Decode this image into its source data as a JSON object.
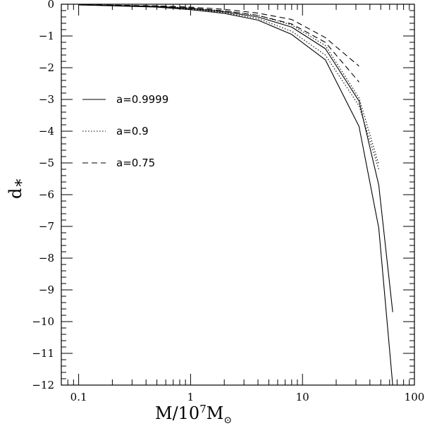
{
  "chart_data": {
    "type": "line",
    "xscale": "log",
    "xlim": [
      0.07,
      100
    ],
    "ylim": [
      -12,
      0
    ],
    "xlabel": {
      "base": "M/10",
      "sup": "7",
      "unit": "M",
      "sub": "⊙"
    },
    "ylabel": {
      "base": "d",
      "sub": "*"
    },
    "xticks_major": [
      {
        "value": 0.1,
        "label": "0.1"
      },
      {
        "value": 1,
        "label": "1"
      },
      {
        "value": 10,
        "label": "10"
      },
      {
        "value": 100,
        "label": "100"
      }
    ],
    "yticks_major": [
      {
        "value": 0,
        "label": "0"
      },
      {
        "value": -1,
        "label": "−1"
      },
      {
        "value": -2,
        "label": "−2"
      },
      {
        "value": -3,
        "label": "−3"
      },
      {
        "value": -4,
        "label": "−4"
      },
      {
        "value": -5,
        "label": "−5"
      },
      {
        "value": -6,
        "label": "−6"
      },
      {
        "value": -7,
        "label": "−7"
      },
      {
        "value": -8,
        "label": "−8"
      },
      {
        "value": -9,
        "label": "−9"
      },
      {
        "value": -10,
        "label": "−10"
      },
      {
        "value": -11,
        "label": "−11"
      },
      {
        "value": -12,
        "label": "−12"
      }
    ],
    "legend": {
      "placement": "left-middle"
    },
    "series": [
      {
        "name": "a=0.9999",
        "style": "solid",
        "x": [
          0.1,
          0.5,
          1,
          2,
          4,
          8,
          16,
          32,
          48,
          64
        ],
        "y": [
          -0.02,
          -0.09,
          -0.17,
          -0.29,
          -0.5,
          -0.95,
          -1.75,
          -3.85,
          -7.05,
          -12.0
        ]
      },
      {
        "name": "a=0.9999",
        "style": "solid",
        "x": [
          0.1,
          0.5,
          1,
          2,
          4,
          8,
          16,
          32,
          48,
          64
        ],
        "y": [
          -0.02,
          -0.07,
          -0.13,
          -0.24,
          -0.4,
          -0.72,
          -1.4,
          -3.05,
          -5.7,
          -9.7
        ]
      },
      {
        "name": "a=0.9",
        "style": "dotted",
        "x": [
          0.1,
          0.5,
          1,
          2,
          4,
          8,
          16,
          32,
          48
        ],
        "y": [
          -0.02,
          -0.08,
          -0.15,
          -0.27,
          -0.45,
          -0.85,
          -1.6,
          -3.2,
          -5.2
        ]
      },
      {
        "name": "a=0.9",
        "style": "dotted",
        "x": [
          0.1,
          0.5,
          1,
          2,
          4,
          8,
          16,
          32,
          48
        ],
        "y": [
          -0.01,
          -0.06,
          -0.12,
          -0.21,
          -0.35,
          -0.65,
          -1.3,
          -2.95,
          -5.05
        ]
      },
      {
        "name": "a=0.75",
        "style": "dashed",
        "x": [
          0.1,
          0.5,
          1,
          2,
          4,
          8,
          16,
          32
        ],
        "y": [
          -0.02,
          -0.07,
          -0.12,
          -0.21,
          -0.35,
          -0.62,
          -1.2,
          -2.45
        ]
      },
      {
        "name": "a=0.75",
        "style": "dashed",
        "x": [
          0.1,
          0.5,
          1,
          2,
          4,
          8,
          16,
          32
        ],
        "y": [
          -0.01,
          -0.05,
          -0.09,
          -0.16,
          -0.28,
          -0.48,
          -1.05,
          -1.95
        ]
      }
    ]
  }
}
